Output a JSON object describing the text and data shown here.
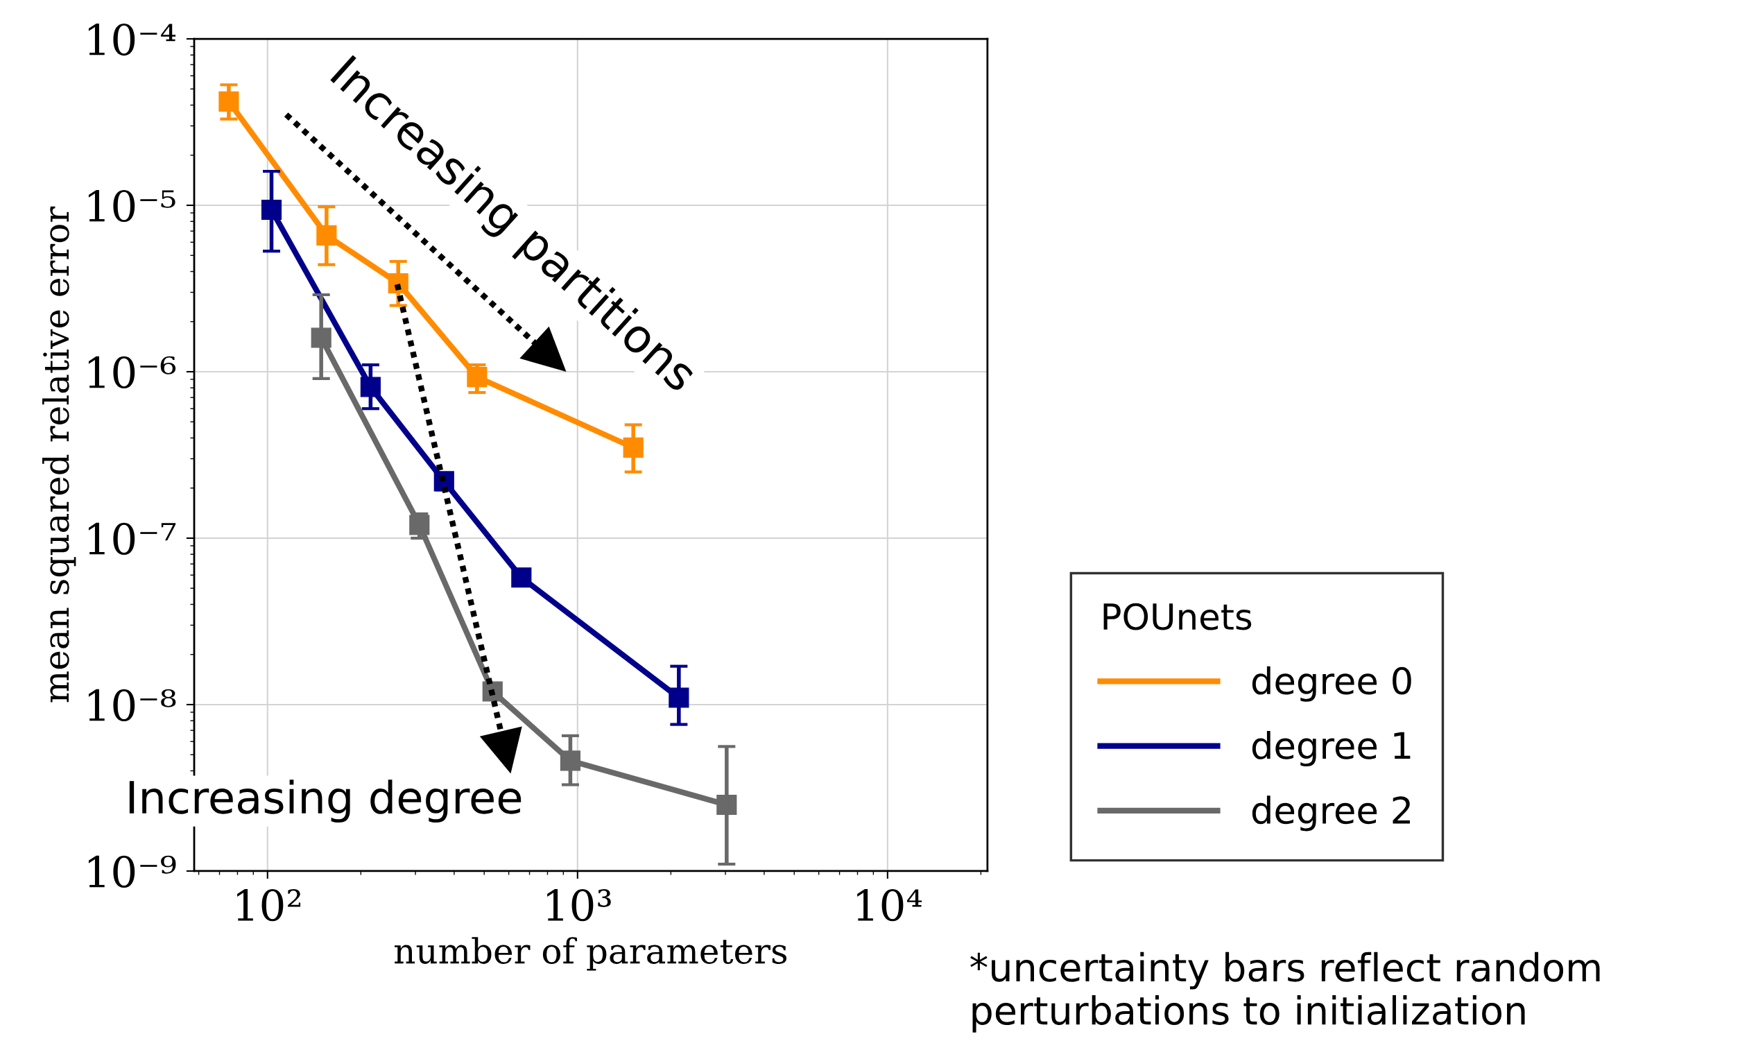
{
  "chart_data": {
    "type": "line",
    "xlabel": "number of parameters",
    "ylabel": "mean squared relative error",
    "legend_title": "POUnets",
    "log": "xy",
    "grid": true,
    "legend": "right",
    "marker": "square",
    "line_style": "solid",
    "xlim": [
      58,
      21000
    ],
    "xticks": [
      {
        "value": 100,
        "label": "10²"
      },
      {
        "value": 1000,
        "label": "10³"
      },
      {
        "value": 10000,
        "label": "10⁴"
      }
    ],
    "ylim": [
      1e-09,
      0.0001
    ],
    "yticks": [
      {
        "value": 1e-09,
        "label": "10⁻⁹"
      },
      {
        "value": 1e-08,
        "label": "10⁻⁸"
      },
      {
        "value": 1e-07,
        "label": "10⁻⁷"
      },
      {
        "value": 1e-06,
        "label": "10⁻⁶"
      },
      {
        "value": 1e-05,
        "label": "10⁻⁵"
      },
      {
        "value": 0.0001,
        "label": "10⁻⁴"
      }
    ],
    "series": [
      {
        "name": "degree 0",
        "color": "#ff8c00",
        "x": [
          75,
          155,
          264,
          474,
          1513
        ],
        "values": [
          4.2e-05,
          6.6e-06,
          3.4e-06,
          9.3e-07,
          3.5e-07
        ],
        "errors": [
          [
            3.3e-05,
            5.3e-05
          ],
          [
            4.4e-06,
            9.8e-06
          ],
          [
            2.5e-06,
            4.6e-06
          ],
          [
            7.5e-07,
            1.1e-06
          ],
          [
            2.5e-07,
            4.8e-07
          ]
        ]
      },
      {
        "name": "degree 1",
        "color": "#00008b",
        "x": [
          103,
          215,
          371,
          659,
          2122
        ],
        "values": [
          9.4e-06,
          8.1e-07,
          2.2e-07,
          5.8e-08,
          1.1e-08
        ],
        "errors": [
          [
            5.3e-06,
            1.6e-05
          ],
          [
            6e-07,
            1.1e-06
          ],
          [
            1.95e-07,
            2.45e-07
          ],
          null,
          [
            7.6e-09,
            1.7e-08
          ]
        ]
      },
      {
        "name": "degree 2",
        "color": "#696969",
        "x": [
          149,
          309,
          532,
          948,
          3027
        ],
        "values": [
          1.6e-06,
          1.2e-07,
          1.2e-08,
          4.6e-09,
          2.5e-09
        ],
        "errors": [
          [
            9.1e-07,
            2.9e-06
          ],
          [
            1e-07,
            1.4e-07
          ],
          [
            1.07e-08,
            1.3e-08
          ],
          [
            3.3e-09,
            6.5e-09
          ],
          [
            1.1e-09,
            5.6e-09
          ]
        ]
      }
    ],
    "annotations": [
      "Increasing partitions",
      "Increasing degree",
      "*uncertainty bars reflect random perturbations to initialization"
    ]
  }
}
